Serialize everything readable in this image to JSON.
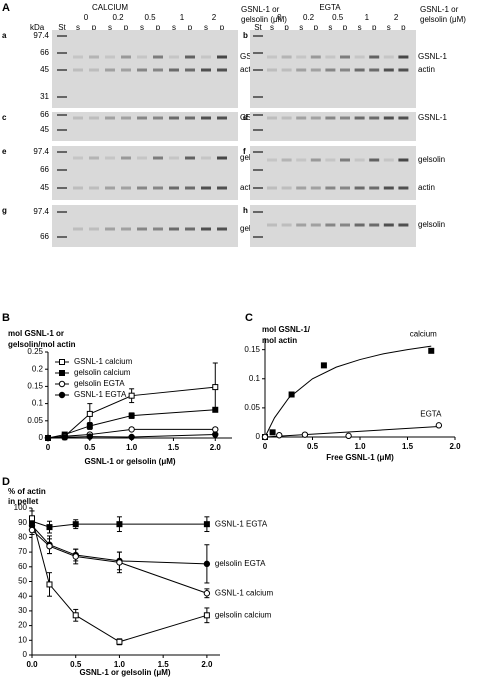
{
  "figure": {
    "panel_label": "A",
    "conditions": [
      "CALCIUM",
      "EGTA"
    ],
    "concentrations": [
      "0",
      "0.2",
      "0.5",
      "1",
      "2"
    ],
    "lane_types": [
      "s",
      "p"
    ],
    "unit_label": [
      "GSNL-1 or",
      "gelsolin (μM)"
    ],
    "kda": "kDa",
    "standard": "St",
    "gels": [
      {
        "letter": "a",
        "markers": [
          "97.4",
          "66",
          "45",
          "31"
        ],
        "bands": [
          "GSNL-1",
          "actin"
        ]
      },
      {
        "letter": "b",
        "markers": [],
        "bands": [
          "GSNL-1",
          "actin"
        ]
      },
      {
        "letter": "c",
        "markers": [
          "66",
          "45"
        ],
        "bands": [
          "GSNL-1"
        ]
      },
      {
        "letter": "d",
        "markers": [],
        "bands": [
          "GSNL-1"
        ]
      },
      {
        "letter": "e",
        "markers": [
          "97.4",
          "66",
          "45"
        ],
        "bands": [
          "gelsolin",
          "actin"
        ]
      },
      {
        "letter": "f",
        "markers": [],
        "bands": [
          "gelsolin",
          "actin"
        ]
      },
      {
        "letter": "g",
        "markers": [
          "97.4",
          "66"
        ],
        "bands": [
          "gelsolin"
        ]
      },
      {
        "letter": "h",
        "markers": [],
        "bands": [
          "gelsolin"
        ]
      }
    ]
  },
  "chart_data": [
    {
      "type": "line",
      "panel": "B",
      "y_label": [
        "mol GSNL-1 or",
        "gelsolin/mol actin"
      ],
      "x_label": "GSNL-1 or gelsolin (μM)",
      "x": [
        0,
        0.2,
        0.5,
        1.0,
        2.0
      ],
      "xlim": [
        0,
        2.2
      ],
      "xticks": [
        0,
        0.5,
        {
          "value": 1,
          "label": "1.0"
        },
        1.5,
        {
          "value": 2,
          "label": "2.0"
        }
      ],
      "ylim": [
        0,
        0.25
      ],
      "yticks": [
        0,
        0.05,
        0.1,
        0.15,
        0.2,
        0.25
      ],
      "legend": "top-left",
      "series": [
        {
          "name": "GSNL-1 calcium",
          "color": "#000000",
          "marker": "open-square",
          "values": [
            0,
            0.005,
            0.07,
            0.123,
            0.148
          ],
          "errors": [
            0,
            0.01,
            0.03,
            0.02,
            0.07
          ]
        },
        {
          "name": "gelsolin calcium",
          "color": "#000000",
          "marker": "filled-square",
          "values": [
            0,
            0.01,
            0.035,
            0.065,
            0.082
          ],
          "errors": [
            0,
            0.005,
            0.01,
            0.008,
            0.003
          ]
        },
        {
          "name": "gelsolin EGTA",
          "color": "#000000",
          "marker": "open-circle",
          "values": [
            0,
            0.005,
            0.01,
            0.025,
            0.025
          ],
          "errors": [
            0,
            0.003,
            0.003,
            0.003,
            0.004
          ]
        },
        {
          "name": "GSNL-1 EGTA",
          "color": "#000000",
          "marker": "filled-circle",
          "values": [
            0,
            0.002,
            0.004,
            0.003,
            0.01
          ],
          "errors": [
            0,
            0.002,
            0.002,
            0.002,
            0.003
          ]
        }
      ]
    },
    {
      "type": "scatter",
      "panel": "C",
      "y_label": [
        "mol GSNL-1/",
        "mol actin"
      ],
      "x_label": "Free GSNL-1 (μM)",
      "xlim": [
        0,
        2.0
      ],
      "xticks": [
        0,
        0.5,
        {
          "value": 1,
          "label": "1.0"
        },
        1.5,
        {
          "value": 2,
          "label": "2.0"
        }
      ],
      "ylim": [
        0,
        0.17
      ],
      "yticks": [
        0,
        0.05,
        0.1,
        0.15
      ],
      "legend": "inline",
      "series": [
        {
          "name": "calcium",
          "color": "#000000",
          "marker": "filled-square",
          "x": [
            0,
            0.08,
            0.28,
            0.62,
            1.75
          ],
          "values": [
            0,
            0.008,
            0.073,
            0.123,
            0.148
          ],
          "fit_x": [
            0,
            0.1,
            0.25,
            0.5,
            0.75,
            1.0,
            1.25,
            1.5,
            1.75
          ],
          "fit_values": [
            0,
            0.033,
            0.067,
            0.1,
            0.12,
            0.133,
            0.143,
            0.15,
            0.156
          ]
        },
        {
          "name": "EGTA",
          "color": "#000000",
          "marker": "open-circle",
          "x": [
            0,
            0.15,
            0.42,
            0.88,
            1.83
          ],
          "values": [
            0,
            0.003,
            0.004,
            0.002,
            0.02
          ],
          "fit_x": [
            0,
            1.83
          ],
          "fit_values": [
            0,
            0.018
          ]
        }
      ]
    },
    {
      "type": "line",
      "panel": "D",
      "y_label": [
        "% of actin",
        "in pellet"
      ],
      "x_label": "GSNL-1 or gelsolin (μM)",
      "x": [
        0,
        0.2,
        0.5,
        1.0,
        2.0
      ],
      "xlim": [
        0,
        2.15
      ],
      "xticks": [
        {
          "value": 0,
          "label": "0.0"
        },
        0.5,
        {
          "value": 1,
          "label": "1.0"
        },
        1.5,
        {
          "value": 2,
          "label": "2.0"
        }
      ],
      "ylim": [
        0,
        100
      ],
      "yticks": [
        0,
        10,
        20,
        30,
        40,
        50,
        60,
        70,
        80,
        90,
        100
      ],
      "legend": "end-labels",
      "series": [
        {
          "name": "GSNL-1 EGTA",
          "color": "#000000",
          "marker": "filled-square",
          "values": [
            91,
            87,
            89,
            89,
            89
          ],
          "errors": [
            3,
            4,
            3,
            5,
            5
          ]
        },
        {
          "name": "gelsolin EGTA",
          "color": "#000000",
          "marker": "filled-circle",
          "values": [
            88,
            75,
            68,
            64,
            62
          ],
          "errors": [
            3,
            6,
            4,
            6,
            13
          ]
        },
        {
          "name": "GSNL-1 calcium",
          "color": "#000000",
          "marker": "open-circle",
          "values": [
            85,
            74,
            67,
            63,
            42
          ],
          "errors": [
            3,
            5,
            5,
            7,
            3
          ]
        },
        {
          "name": "gelsolin calcium",
          "color": "#000000",
          "marker": "open-square",
          "values": [
            93,
            48,
            27,
            9,
            27
          ],
          "errors": [
            5,
            8,
            4,
            2,
            5
          ]
        }
      ]
    }
  ]
}
